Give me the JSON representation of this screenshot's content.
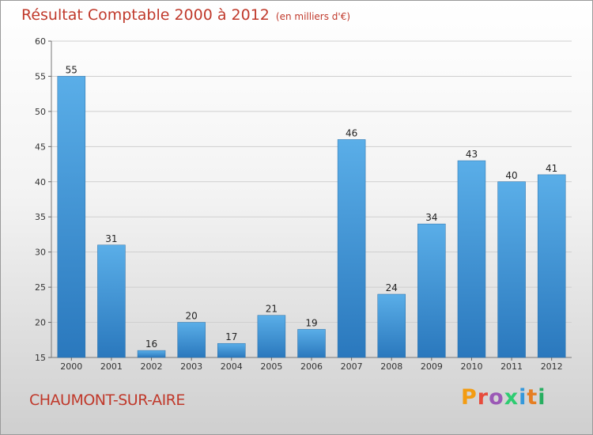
{
  "title": "Résultat Comptable 2000 à 2012",
  "unit": "(en milliers d'€)",
  "commune": "CHAUMONT-SUR-AIRE",
  "logo": {
    "text": "Proxiti",
    "colors": [
      "#f39c12",
      "#e74c3c",
      "#9b59b6",
      "#2ecc71",
      "#3498db",
      "#e67e22",
      "#27ae60"
    ]
  },
  "chart_data": {
    "type": "bar",
    "title": "Résultat Comptable 2000 à 2012",
    "xlabel": "",
    "ylabel": "",
    "categories": [
      "2000",
      "2001",
      "2002",
      "2003",
      "2004",
      "2005",
      "2006",
      "2007",
      "2008",
      "2009",
      "2010",
      "2011",
      "2012"
    ],
    "values": [
      55,
      31,
      16,
      20,
      17,
      21,
      19,
      46,
      24,
      34,
      43,
      40,
      41
    ],
    "ylim": [
      15,
      60
    ],
    "yticks": [
      15,
      20,
      25,
      30,
      35,
      40,
      45,
      50,
      55,
      60
    ],
    "grid": true,
    "bar_color": "#3a8fd6"
  }
}
